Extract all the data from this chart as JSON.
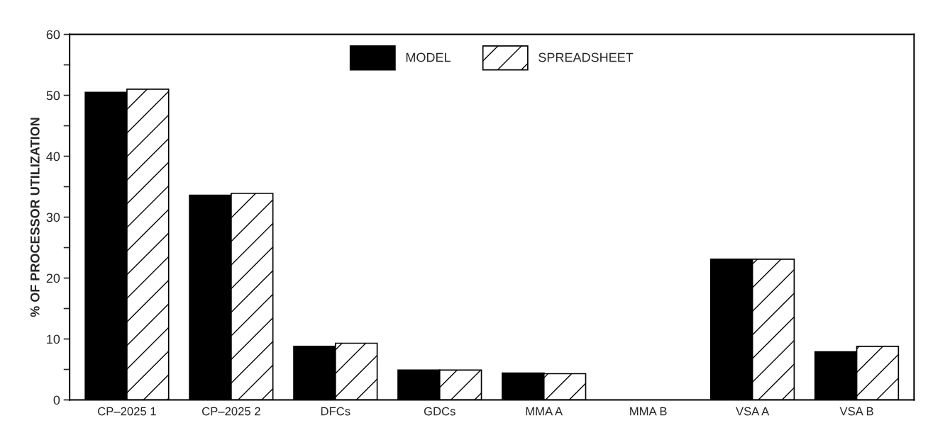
{
  "chart_data": {
    "type": "bar",
    "ylabel": "% OF PROCESSOR UTILIZATION",
    "categories": [
      "CP–2025 1",
      "CP–2025 2",
      "DFCs",
      "GDCs",
      "MMA A",
      "MMA B",
      "VSA A",
      "VSA B"
    ],
    "series": [
      {
        "name": "MODEL",
        "color": "#000000",
        "values": [
          50.5,
          33.6,
          8.8,
          4.9,
          4.4,
          0,
          23.1,
          7.9
        ]
      },
      {
        "name": "SPREADSHEET",
        "color": "#ffffff",
        "values": [
          51.0,
          33.9,
          9.3,
          4.9,
          4.3,
          0,
          23.1,
          8.8
        ]
      }
    ],
    "ylim": [
      0,
      60
    ],
    "yticks": [
      0,
      {
        "value": 5,
        "label": null
      },
      10,
      {
        "value": 15,
        "label": null
      },
      20,
      {
        "value": 25,
        "label": null
      },
      30,
      {
        "value": 35,
        "label": null
      },
      40,
      {
        "value": 45,
        "label": null
      },
      50,
      {
        "value": 55,
        "label": null
      },
      60
    ],
    "grid": false,
    "legend": "top"
  }
}
